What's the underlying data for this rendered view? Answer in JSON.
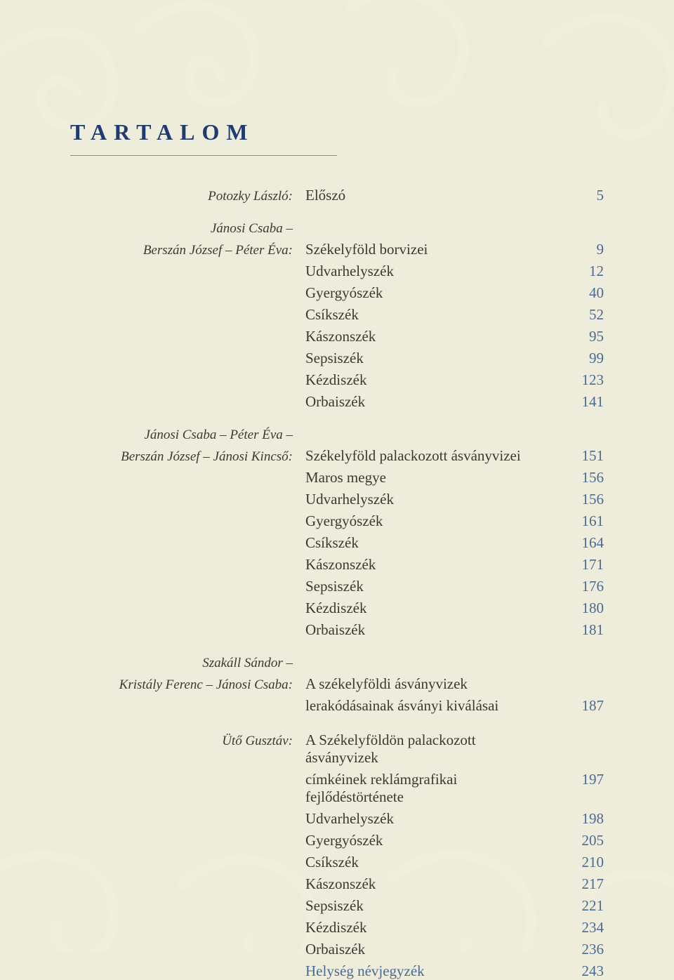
{
  "page": {
    "background_color": "#eeecda",
    "swirl_color": "#f6f4e7",
    "heading": "TARTALOM",
    "heading_color": "#1f3b6f",
    "text_color": "#3a3a33",
    "number_color": "#4a6b94",
    "link_color": "#4a6b94",
    "fontsize_heading": 32,
    "fontsize_body": 21,
    "fontsize_author": 19
  },
  "sections": [
    {
      "authors": [
        "Potozky László:"
      ],
      "entries": [
        {
          "title": "Előszó",
          "page": "5"
        }
      ]
    },
    {
      "authors": [
        "Jánosi Csaba –",
        "Berszán József – Péter Éva:"
      ],
      "entries": [
        {
          "title": "Székelyföld borvizei",
          "page": "9"
        },
        {
          "title": "Udvarhelyszék",
          "page": "12"
        },
        {
          "title": "Gyergyószék",
          "page": "40"
        },
        {
          "title": "Csíkszék",
          "page": "52"
        },
        {
          "title": "Kászonszék",
          "page": "95"
        },
        {
          "title": "Sepsiszék",
          "page": "99"
        },
        {
          "title": "Kézdiszék",
          "page": "123"
        },
        {
          "title": "Orbaiszék",
          "page": "141"
        }
      ]
    },
    {
      "authors": [
        "Jánosi Csaba – Péter Éva –",
        "Berszán József – Jánosi Kincső:"
      ],
      "entries": [
        {
          "title": "Székelyföld palackozott ásványvizei",
          "page": "151"
        },
        {
          "title": "Maros megye",
          "page": "156"
        },
        {
          "title": "Udvarhelyszék",
          "page": "156"
        },
        {
          "title": "Gyergyószék",
          "page": "161"
        },
        {
          "title": "Csíkszék",
          "page": "164"
        },
        {
          "title": "Kászonszék",
          "page": "171"
        },
        {
          "title": "Sepsiszék",
          "page": "176"
        },
        {
          "title": "Kézdiszék",
          "page": "180"
        },
        {
          "title": "Orbaiszék",
          "page": "181"
        }
      ]
    },
    {
      "authors": [
        "Szakáll Sándor –",
        "Kristály Ferenc – Jánosi Csaba:"
      ],
      "entries": [
        {
          "title": "A székelyföldi ásványvizek",
          "page": ""
        },
        {
          "title": "lerakódásainak ásványi kiválásai",
          "page": "187"
        }
      ]
    },
    {
      "authors": [
        "Ütő Gusztáv:"
      ],
      "entries": [
        {
          "title": "A Székelyföldön palackozott ásványvizek",
          "page": ""
        },
        {
          "title": "címkéinek reklámgrafikai fejlődéstörténete",
          "page": "197"
        },
        {
          "title": "Udvarhelyszék",
          "page": "198"
        },
        {
          "title": "Gyergyószék",
          "page": "205"
        },
        {
          "title": "Csíkszék",
          "page": "210"
        },
        {
          "title": "Kászonszék",
          "page": "217"
        },
        {
          "title": "Sepsiszék",
          "page": "221"
        },
        {
          "title": "Kézdiszék",
          "page": "234"
        },
        {
          "title": "Orbaiszék",
          "page": "236"
        },
        {
          "title": "Helység névjegyzék",
          "page": "243",
          "link": true
        }
      ]
    }
  ]
}
